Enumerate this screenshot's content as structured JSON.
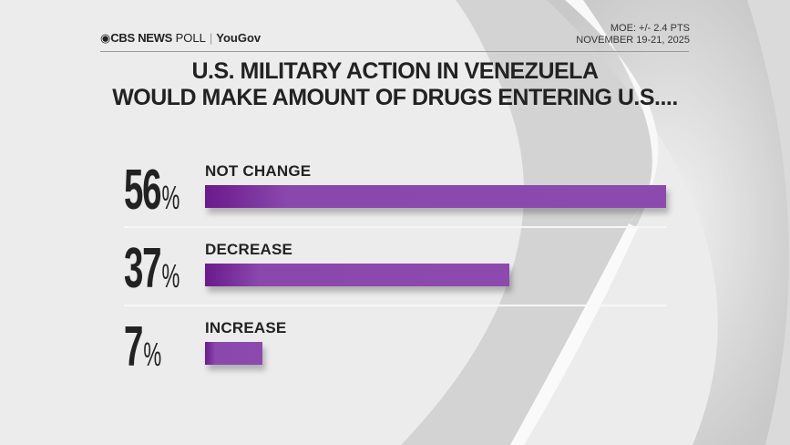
{
  "header": {
    "brand_cbs": "CBS NEWS",
    "brand_poll": "POLL",
    "brand_partner": "YouGov",
    "moe": "MOE: +/- 2.4 PTS",
    "dates": "NOVEMBER 19-21, 2025"
  },
  "chart_data": {
    "type": "bar",
    "orientation": "horizontal",
    "title": "U.S. MILITARY ACTION IN VENEZUELA WOULD MAKE AMOUNT OF DRUGS ENTERING U.S....",
    "title_lines": [
      "U.S. MILITARY ACTION IN VENEZUELA",
      "WOULD MAKE AMOUNT OF DRUGS ENTERING U.S...."
    ],
    "categories": [
      "NOT CHANGE",
      "DECREASE",
      "INCREASE"
    ],
    "values": [
      56,
      37,
      7
    ],
    "value_labels": [
      "56",
      "37",
      "7"
    ],
    "unit": "%",
    "bar_color": "#8c4aae",
    "bar_color_dark": "#6a1a8c",
    "xlim": [
      0,
      56
    ]
  }
}
